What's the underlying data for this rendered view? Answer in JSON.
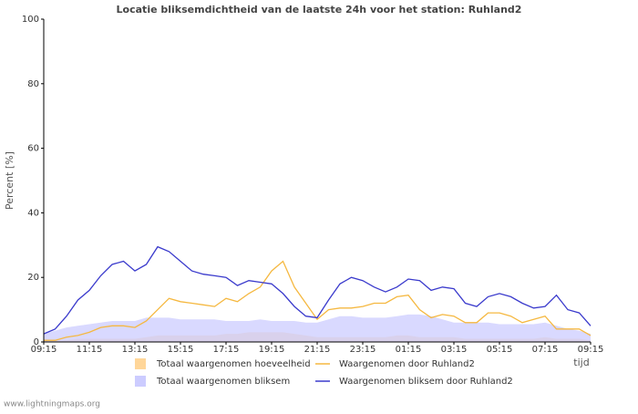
{
  "chart_data": {
    "type": "line",
    "title": "Locatie bliksemdichtheid van de laatste 24h voor het station: Ruhland2",
    "y_label": "Percent   [%]",
    "x_label": "tijd",
    "footer": "www.lightningmaps.org",
    "categories": [
      "09:15",
      null,
      null,
      null,
      "11:15",
      null,
      null,
      null,
      "13:15",
      null,
      null,
      null,
      "15:15",
      null,
      null,
      null,
      "17:15",
      null,
      null,
      null,
      "19:15",
      null,
      null,
      null,
      "21:15",
      null,
      null,
      null,
      "23:15",
      null,
      null,
      null,
      "01:15",
      null,
      null,
      null,
      "03:15",
      null,
      null,
      null,
      "05:15",
      null,
      null,
      null,
      "07:15",
      null,
      null,
      null,
      "09:15"
    ],
    "ylim": [
      0,
      100
    ],
    "yticks": [
      0,
      20,
      40,
      60,
      80,
      100
    ],
    "grid": false,
    "series": [
      {
        "name": "Totaal waargenomen hoeveelheid",
        "style": "area",
        "color": "#ffd699",
        "values": [
          0.5,
          0.5,
          0.5,
          1,
          1,
          1,
          1,
          1,
          1,
          1.5,
          2,
          2,
          2,
          2,
          2,
          2,
          2.5,
          2.5,
          3,
          3,
          3,
          3,
          2.5,
          2,
          1.5,
          1.5,
          1.5,
          1.5,
          1.5,
          1.5,
          1.5,
          2,
          2,
          1.5,
          1.5,
          1.5,
          1.5,
          1,
          1,
          1,
          1,
          1,
          1,
          1,
          1.5,
          1,
          1,
          1,
          0.5
        ]
      },
      {
        "name": "Waargenomen door Ruhland2",
        "style": "line",
        "color": "#f5b840",
        "values": [
          0.5,
          0.5,
          1.5,
          2,
          3,
          4.5,
          5,
          5,
          4.5,
          6.5,
          10,
          13.5,
          12.5,
          12,
          11.5,
          11,
          13.5,
          12.5,
          15,
          17,
          22,
          25,
          17,
          12,
          7,
          10,
          10.5,
          10.5,
          11,
          12,
          12,
          14,
          14.5,
          10,
          7.5,
          8.5,
          8,
          6,
          6,
          9,
          9,
          8,
          6,
          7,
          8,
          4,
          4,
          4,
          2
        ]
      },
      {
        "name": "Totaal waargenomen bliksem",
        "style": "area",
        "color": "#ccccff",
        "values": [
          2.5,
          3.5,
          4.5,
          5,
          5.5,
          6,
          6.5,
          6.5,
          6.5,
          7.5,
          7.5,
          7.5,
          7,
          7,
          7,
          7,
          6.5,
          6.5,
          6.5,
          7,
          6.5,
          6.5,
          6.5,
          6,
          6,
          7,
          8,
          8,
          7.5,
          7.5,
          7.5,
          8,
          8.5,
          8.5,
          8,
          7,
          6,
          6,
          6,
          6,
          5.5,
          5.5,
          5.5,
          5.5,
          6,
          5,
          4,
          3.5,
          2.5
        ]
      },
      {
        "name": "Waargenomen bliksem door Ruhland2",
        "style": "line",
        "color": "#3a3acc",
        "values": [
          2.5,
          4,
          8,
          13,
          16,
          20.5,
          24,
          25,
          22,
          24,
          29.5,
          28,
          25,
          22,
          21,
          20.5,
          20,
          17.5,
          19,
          18.5,
          18,
          15,
          11,
          8,
          7.5,
          13,
          18,
          20,
          19,
          17,
          15.5,
          17,
          19.5,
          19,
          16,
          17,
          16.5,
          12,
          11,
          14,
          15,
          14,
          12,
          10.5,
          11,
          14.5,
          10,
          9,
          5
        ]
      }
    ]
  }
}
